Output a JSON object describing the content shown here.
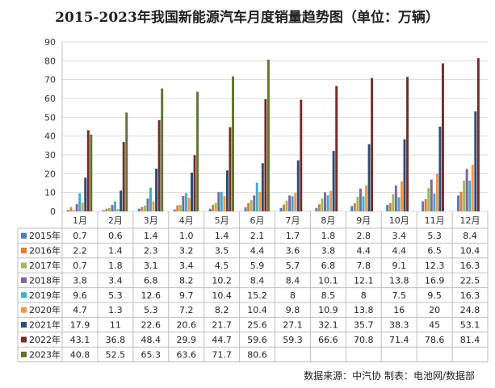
{
  "chart_data": {
    "type": "bar",
    "title": "2015-2023年我国新能源汽车月度销量趋势图（单位：万辆）",
    "categories": [
      "1月",
      "2月",
      "3月",
      "4月",
      "5月",
      "6月",
      "7月",
      "8月",
      "9月",
      "10月",
      "11月",
      "12月"
    ],
    "ylim": [
      0,
      90
    ],
    "yticks": [
      0,
      10,
      20,
      30,
      40,
      50,
      60,
      70,
      80,
      90
    ],
    "grid": true,
    "legend": "data-table-left",
    "series": [
      {
        "name": "2015年",
        "color": "#4a7ebb",
        "values": [
          "0.7",
          "0.6",
          "1.4",
          "1.0",
          "1.4",
          "2.1",
          "1.7",
          "1.8",
          "2.8",
          "3.4",
          "5.3",
          "8.4"
        ]
      },
      {
        "name": "2016年",
        "color": "#e07b39",
        "values": [
          "2.2",
          "1.4",
          "2.3",
          "3.2",
          "3.5",
          "4.4",
          "3.6",
          "3.8",
          "4.4",
          "4.4",
          "6.5",
          "10.4"
        ]
      },
      {
        "name": "2017年",
        "color": "#9bbb59",
        "values": [
          "0.7",
          "1.8",
          "3.1",
          "3.4",
          "4.5",
          "5.9",
          "5.7",
          "6.8",
          "7.8",
          "9.1",
          "12.3",
          "16.3"
        ]
      },
      {
        "name": "2018年",
        "color": "#8064a2",
        "values": [
          "3.8",
          "3.4",
          "6.8",
          "8.2",
          "10.2",
          "8.4",
          "8.4",
          "10.1",
          "12.1",
          "13.8",
          "16.9",
          "22.5"
        ]
      },
      {
        "name": "2019年",
        "color": "#3cafc7",
        "values": [
          "9.6",
          "5.3",
          "12.6",
          "9.7",
          "10.4",
          "15.2",
          "8",
          "8.5",
          "8",
          "7.5",
          "9.5",
          "16.3"
        ]
      },
      {
        "name": "2020年",
        "color": "#f79646",
        "values": [
          "4.7",
          "1.3",
          "5.3",
          "7.2",
          "8.2",
          "10.4",
          "9.8",
          "10.9",
          "13.8",
          "16",
          "20",
          "24.8"
        ]
      },
      {
        "name": "2021年",
        "color": "#2c4d75",
        "values": [
          "17.9",
          "11",
          "22.6",
          "20.6",
          "21.7",
          "25.6",
          "27.1",
          "32.1",
          "35.7",
          "38.3",
          "45",
          "53.1"
        ]
      },
      {
        "name": "2022年",
        "color": "#772c2a",
        "values": [
          "43.1",
          "36.8",
          "48.4",
          "29.9",
          "44.7",
          "59.6",
          "59.3",
          "66.6",
          "70.8",
          "71.4",
          "78.6",
          "81.4"
        ]
      },
      {
        "name": "2023年",
        "color": "#5f7530",
        "values": [
          "40.8",
          "52.5",
          "65.3",
          "63.6",
          "71.7",
          "80.6",
          "",
          "",
          "",
          "",
          "",
          ""
        ]
      }
    ],
    "source": "数据来源：中汽协  制表：电池网/数据部"
  }
}
